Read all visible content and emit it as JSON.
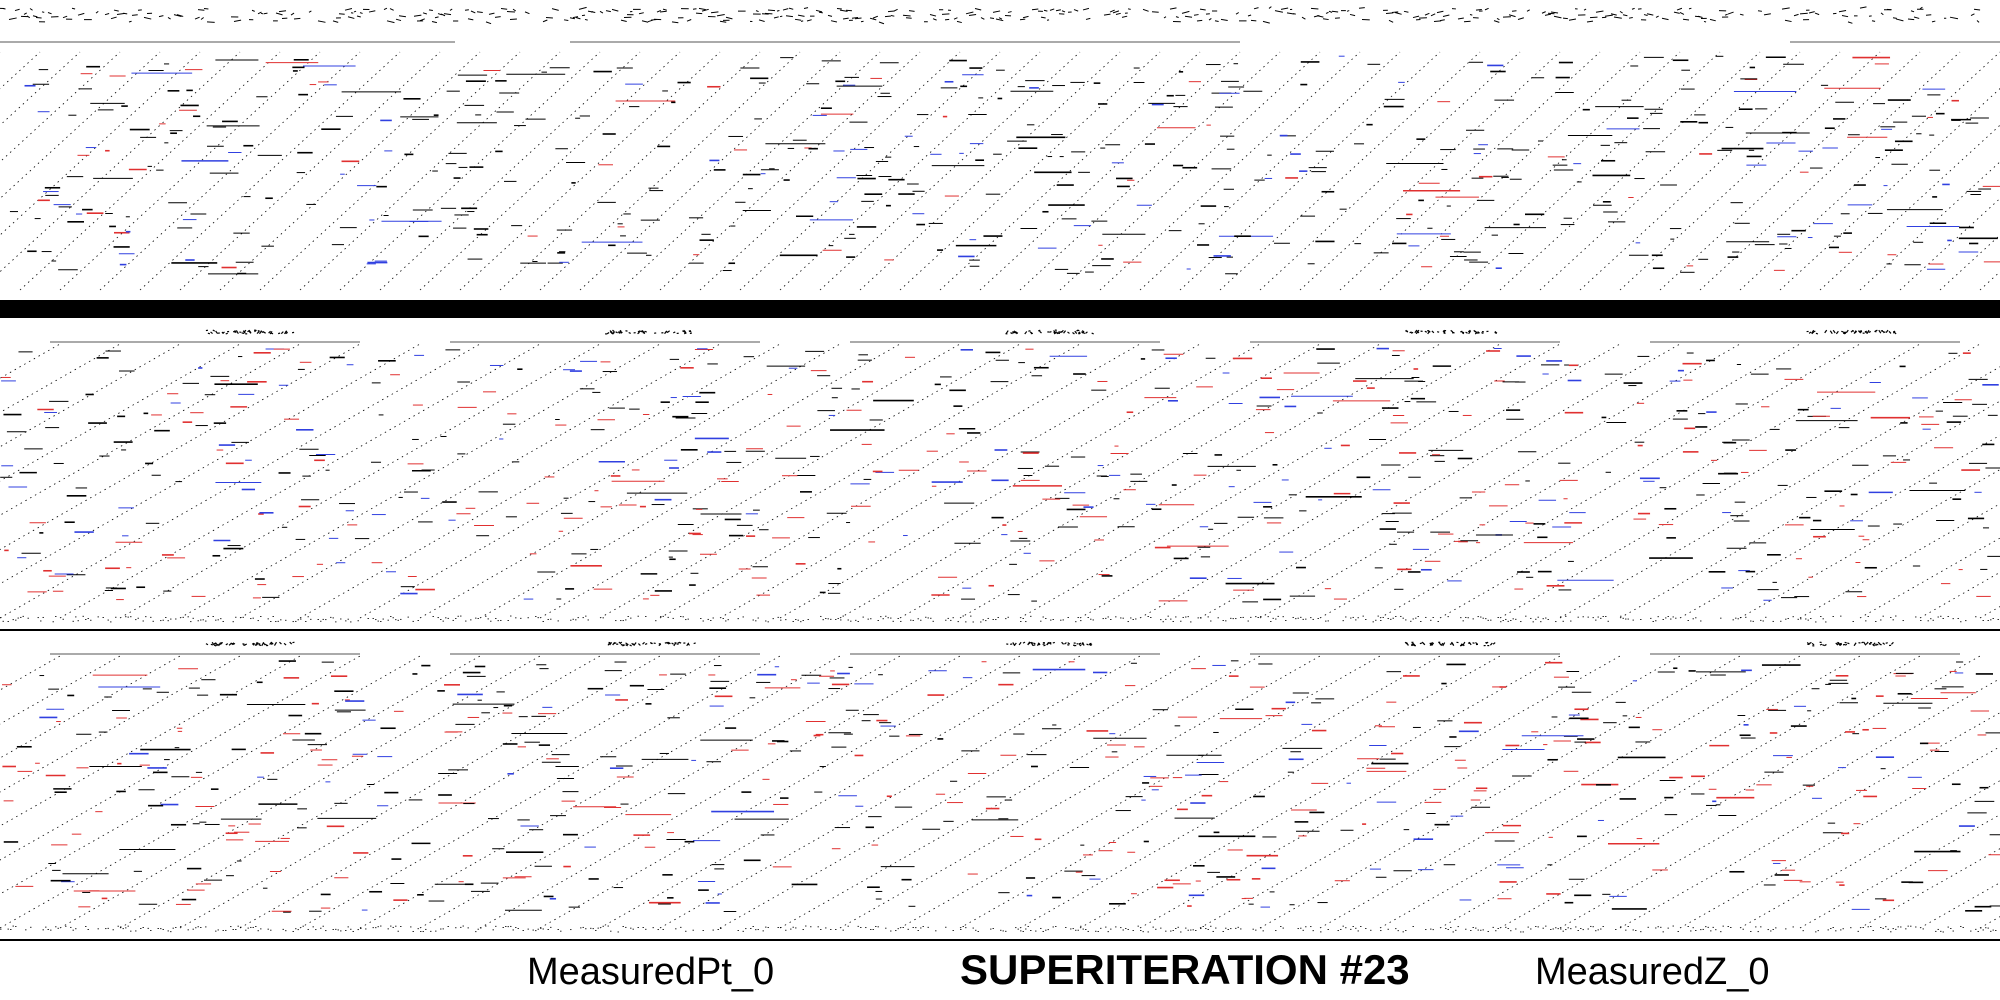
{
  "footer": {
    "left_label": "MeasuredPt_0",
    "title": "SUPERITERATION #23",
    "right_label": "MeasuredZ_0"
  },
  "colors": {
    "background": "#ffffff",
    "ink": "#000000",
    "red": "#e03030",
    "blue": "#3040e0",
    "band": "#000000"
  }
}
